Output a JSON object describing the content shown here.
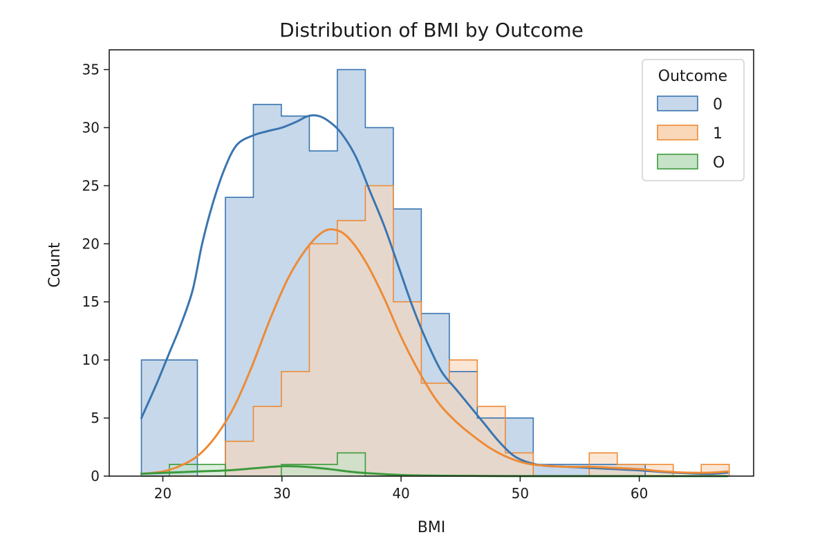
{
  "chart_data": {
    "type": "histogram",
    "title": "Distribution of BMI by Outcome",
    "xlabel": "BMI",
    "ylabel": "Count",
    "xlim": [
      15.5,
      69.6
    ],
    "ylim": [
      0,
      36.7
    ],
    "xticks": [
      20,
      30,
      40,
      50,
      60
    ],
    "yticks": [
      0,
      5,
      10,
      15,
      20,
      25,
      30,
      35
    ],
    "grid": false,
    "legend": {
      "title": "Outcome",
      "placement": "top-right"
    },
    "bins": {
      "start": 18.2,
      "width": 2.35,
      "count": 21
    },
    "series": [
      {
        "name": "0",
        "color": "#3a75b0",
        "fill": "#c6d8ea",
        "counts": [
          10,
          10,
          0,
          24,
          32,
          31,
          28,
          35,
          30,
          23,
          14,
          9,
          5,
          5,
          1,
          1,
          1,
          1,
          0,
          0,
          0
        ],
        "kde": {
          "x": [
            18.2,
            19.5,
            20.5,
            21.5,
            22.5,
            23.3,
            24.2,
            25.2,
            26.2,
            27.5,
            28.8,
            30.0,
            31.2,
            32.2,
            33.1,
            34.0,
            35.0,
            36.2,
            37.4,
            38.6,
            39.8,
            41.0,
            42.2,
            43.4,
            44.6,
            45.8,
            47.0,
            48.2,
            49.4,
            50.6,
            52.0,
            54.0,
            56.0,
            58.0,
            60.0,
            62.0,
            64.0,
            66.0,
            67.4
          ],
          "y": [
            5.0,
            8.0,
            10.5,
            13.0,
            16.0,
            20.0,
            23.5,
            26.5,
            28.5,
            29.3,
            29.7,
            30.0,
            30.5,
            31.0,
            31.0,
            30.5,
            29.5,
            27.5,
            24.5,
            21.5,
            18.0,
            14.5,
            11.5,
            9.0,
            7.5,
            6.0,
            4.5,
            3.0,
            1.8,
            1.2,
            0.9,
            0.8,
            0.7,
            0.6,
            0.5,
            0.35,
            0.25,
            0.2,
            0.3
          ]
        }
      },
      {
        "name": "1",
        "color": "#ee8a35",
        "fill": "#f9d7b9",
        "counts": [
          0,
          0,
          0,
          3,
          6,
          9,
          20,
          22,
          25,
          15,
          8,
          10,
          6,
          2,
          0,
          0,
          2,
          1,
          1,
          0,
          1
        ],
        "kde": {
          "x": [
            18.2,
            20.0,
            21.5,
            23.0,
            24.5,
            26.0,
            27.5,
            29.0,
            30.5,
            32.0,
            33.4,
            34.5,
            35.6,
            37.0,
            38.5,
            40.0,
            41.5,
            43.0,
            44.5,
            46.0,
            47.5,
            49.0,
            50.5,
            52.0,
            54.0,
            56.0,
            58.0,
            60.0,
            62.0,
            64.0,
            66.0,
            67.4
          ],
          "y": [
            0.2,
            0.4,
            0.9,
            1.8,
            3.5,
            6.0,
            9.5,
            13.5,
            17.0,
            19.5,
            21.0,
            21.2,
            20.5,
            18.5,
            15.5,
            12.0,
            9.0,
            6.5,
            4.8,
            3.5,
            2.4,
            1.6,
            1.1,
            0.9,
            0.8,
            0.8,
            0.7,
            0.6,
            0.4,
            0.3,
            0.3,
            0.4
          ]
        }
      },
      {
        "name": "O",
        "color": "#3c9a3c",
        "fill": "#c7e3c7",
        "counts": [
          0,
          1,
          1,
          0,
          0,
          1,
          1,
          2,
          0,
          0,
          0,
          0,
          0,
          0,
          0,
          0,
          0,
          0,
          0,
          0,
          0
        ],
        "kde": {
          "x": [
            18.2,
            20.5,
            23.0,
            25.5,
            28.0,
            30.0,
            32.0,
            34.0,
            36.0,
            38.0,
            40.0,
            42.0,
            44.0,
            46.0,
            48.0,
            52.0,
            56.0,
            60.0,
            64.0,
            67.4
          ],
          "y": [
            0.2,
            0.3,
            0.4,
            0.5,
            0.7,
            0.85,
            0.8,
            0.6,
            0.35,
            0.2,
            0.1,
            0.05,
            0.03,
            0.02,
            0.01,
            0.0,
            0.0,
            0.0,
            0.0,
            0.0
          ]
        }
      }
    ]
  }
}
